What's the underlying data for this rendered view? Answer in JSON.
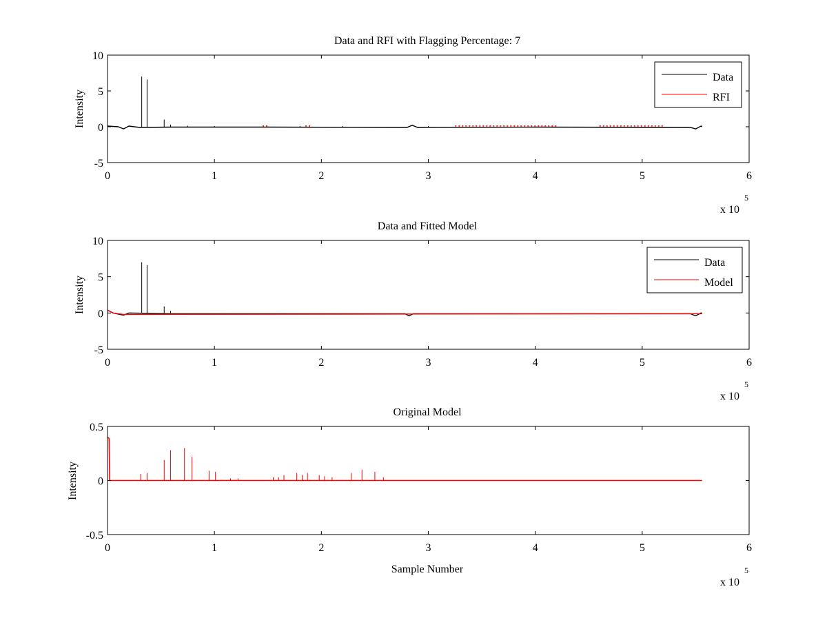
{
  "chart_data": [
    {
      "type": "line",
      "title": "Data and RFI with Flagging Percentage: 7",
      "xlabel": "",
      "ylabel": "Intensity",
      "xlim": [
        0,
        600000
      ],
      "ylim": [
        -5,
        10
      ],
      "xticks": [
        "0",
        "1",
        "2",
        "3",
        "4",
        "5",
        "6"
      ],
      "yticks": [
        "-5",
        "0",
        "5",
        "10"
      ],
      "x_multiplier_base": "x 10",
      "x_multiplier_exp": "5",
      "legend": {
        "placement": "top-right",
        "entries": [
          "Data",
          "RFI"
        ]
      },
      "grid": false,
      "series": [
        {
          "name": "Data",
          "color": "#000000",
          "baseline": [
            [
              0,
              0.1
            ],
            [
              10000,
              0.0
            ],
            [
              15000,
              -0.3
            ],
            [
              20000,
              0.1
            ],
            [
              30000,
              -0.1
            ],
            [
              60000,
              -0.05
            ],
            [
              150000,
              -0.05
            ],
            [
              280000,
              -0.1
            ],
            [
              285000,
              0.2
            ],
            [
              290000,
              -0.1
            ],
            [
              400000,
              -0.05
            ],
            [
              545000,
              -0.1
            ],
            [
              550000,
              -0.3
            ],
            [
              555000,
              0.1
            ],
            [
              556000,
              0.0
            ]
          ],
          "spikes": [
            [
              32000,
              7.0
            ],
            [
              37000,
              6.6
            ],
            [
              53000,
              1.0
            ],
            [
              59000,
              0.3
            ],
            [
              75000,
              0.15
            ],
            [
              100000,
              0.1
            ],
            [
              180000,
              0.1
            ],
            [
              220000,
              0.1
            ],
            [
              300000,
              0.1
            ]
          ]
        },
        {
          "name": "RFI",
          "color": "#ff0000",
          "ranges": [
            [
              145000,
              150000
            ],
            [
              185000,
              190000
            ],
            [
              325000,
              420000
            ],
            [
              460000,
              520000
            ]
          ],
          "level": 0.1
        }
      ]
    },
    {
      "type": "line",
      "title": "Data and Fitted Model",
      "xlabel": "",
      "ylabel": "Intensity",
      "xlim": [
        0,
        600000
      ],
      "ylim": [
        -5,
        10
      ],
      "xticks": [
        "0",
        "1",
        "2",
        "3",
        "4",
        "5",
        "6"
      ],
      "yticks": [
        "-5",
        "0",
        "5",
        "10"
      ],
      "x_multiplier_base": "x 10",
      "x_multiplier_exp": "5",
      "legend": {
        "placement": "top-right",
        "entries": [
          "Data",
          "Model"
        ]
      },
      "grid": false,
      "series": [
        {
          "name": "Data",
          "color": "#000000",
          "baseline": [
            [
              0,
              0.4
            ],
            [
              5000,
              0.0
            ],
            [
              15000,
              -0.3
            ],
            [
              20000,
              0.0
            ],
            [
              60000,
              -0.1
            ],
            [
              278000,
              -0.1
            ],
            [
              282000,
              -0.4
            ],
            [
              286000,
              -0.1
            ],
            [
              545000,
              -0.1
            ],
            [
              550000,
              -0.4
            ],
            [
              555000,
              0.0
            ],
            [
              556000,
              0.0
            ]
          ],
          "spikes": [
            [
              32000,
              7.0
            ],
            [
              37000,
              6.6
            ],
            [
              53000,
              0.9
            ],
            [
              59000,
              0.3
            ]
          ]
        },
        {
          "name": "Model",
          "color": "#ff0000",
          "baseline": [
            [
              0,
              0.4
            ],
            [
              5000,
              0.0
            ],
            [
              15000,
              -0.2
            ],
            [
              556000,
              -0.1
            ]
          ]
        }
      ]
    },
    {
      "type": "line",
      "title": "Original Model",
      "xlabel": "Sample Number",
      "ylabel": "Intensity",
      "xlim": [
        0,
        600000
      ],
      "ylim": [
        -0.5,
        0.5
      ],
      "xticks": [
        "0",
        "1",
        "2",
        "3",
        "4",
        "5",
        "6"
      ],
      "yticks": [
        "-0.5",
        "0",
        "0.5"
      ],
      "x_multiplier_base": "x 10",
      "x_multiplier_exp": "5",
      "grid": false,
      "series": [
        {
          "color": "#ff0000",
          "start": [
            [
              0,
              0.4
            ],
            [
              1500,
              0.39
            ],
            [
              2000,
              0.0
            ]
          ],
          "baseline_level": 0.0,
          "end_x": 556000,
          "spikes": [
            [
              31000,
              0.06
            ],
            [
              37000,
              0.07
            ],
            [
              53000,
              0.19
            ],
            [
              59000,
              0.28
            ],
            [
              72000,
              0.3
            ],
            [
              79000,
              0.22
            ],
            [
              95000,
              0.09
            ],
            [
              101000,
              0.08
            ],
            [
              115000,
              0.02
            ],
            [
              122000,
              0.02
            ],
            [
              155000,
              0.03
            ],
            [
              160000,
              0.03
            ],
            [
              165000,
              0.05
            ],
            [
              177000,
              0.07
            ],
            [
              182000,
              0.05
            ],
            [
              187000,
              0.07
            ],
            [
              198000,
              0.05
            ],
            [
              203000,
              0.04
            ],
            [
              210000,
              0.03
            ],
            [
              228000,
              0.07
            ],
            [
              238000,
              0.1
            ],
            [
              250000,
              0.08
            ],
            [
              258000,
              0.03
            ]
          ]
        }
      ]
    }
  ]
}
